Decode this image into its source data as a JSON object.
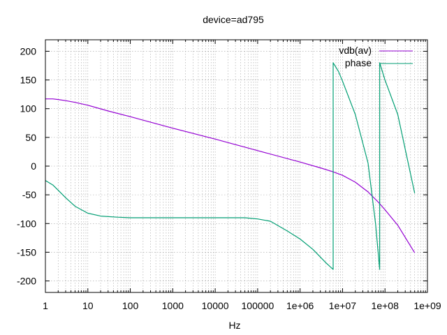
{
  "chart_data": {
    "type": "line",
    "title": "device=ad795",
    "xlabel": "Hz",
    "ylabel": "",
    "x_scale": "log",
    "xlim": [
      1,
      1000000000
    ],
    "ylim": [
      -220,
      220
    ],
    "grid": true,
    "legend_position": "top-right",
    "x_ticks": [
      {
        "value": 1,
        "label": "1"
      },
      {
        "value": 10,
        "label": "10"
      },
      {
        "value": 100,
        "label": "100"
      },
      {
        "value": 1000,
        "label": "1000"
      },
      {
        "value": 10000,
        "label": "10000"
      },
      {
        "value": 100000,
        "label": "100000"
      },
      {
        "value": 1000000,
        "label": "1e+06"
      },
      {
        "value": 10000000,
        "label": "1e+07"
      },
      {
        "value": 100000000,
        "label": "1e+08"
      },
      {
        "value": 1000000000,
        "label": "1e+09"
      }
    ],
    "y_ticks": [
      {
        "value": 200,
        "label": "200"
      },
      {
        "value": 150,
        "label": "150"
      },
      {
        "value": 100,
        "label": "100"
      },
      {
        "value": 50,
        "label": "50"
      },
      {
        "value": 0,
        "label": "0"
      },
      {
        "value": -50,
        "label": "-50"
      },
      {
        "value": -100,
        "label": "-100"
      },
      {
        "value": -150,
        "label": "-150"
      },
      {
        "value": -200,
        "label": "-200"
      }
    ],
    "series": [
      {
        "name": "vdb(av)",
        "color": "#9400d3",
        "points": [
          [
            1,
            117
          ],
          [
            1.5,
            117
          ],
          [
            2,
            116
          ],
          [
            3,
            114
          ],
          [
            5,
            111
          ],
          [
            10,
            106
          ],
          [
            30,
            96
          ],
          [
            100,
            86
          ],
          [
            1000,
            66
          ],
          [
            10000,
            47
          ],
          [
            100000,
            27
          ],
          [
            1000000,
            7
          ],
          [
            3000000,
            -3
          ],
          [
            6000000,
            -10
          ],
          [
            10000000,
            -16
          ],
          [
            20000000,
            -28
          ],
          [
            40000000,
            -45
          ],
          [
            70000000,
            -63
          ],
          [
            100000000,
            -76
          ],
          [
            200000000,
            -103
          ],
          [
            500000000,
            -151
          ]
        ]
      },
      {
        "name": "phase",
        "color": "#009e73",
        "points": [
          [
            1,
            -25
          ],
          [
            1.5,
            -33
          ],
          [
            2,
            -42
          ],
          [
            3,
            -55
          ],
          [
            5,
            -70
          ],
          [
            10,
            -82
          ],
          [
            20,
            -87
          ],
          [
            50,
            -89
          ],
          [
            100,
            -90
          ],
          [
            1000,
            -90
          ],
          [
            10000,
            -90
          ],
          [
            50000,
            -90
          ],
          [
            100000,
            -92
          ],
          [
            200000,
            -96
          ],
          [
            500000,
            -113
          ],
          [
            1000000,
            -127
          ],
          [
            2000000,
            -145
          ],
          [
            4000000,
            -168
          ],
          [
            6000000,
            -180
          ],
          [
            6000000,
            180
          ],
          [
            8000000,
            165
          ],
          [
            10000000,
            148
          ],
          [
            20000000,
            90
          ],
          [
            40000000,
            5
          ],
          [
            60000000,
            -100
          ],
          [
            75000000,
            -180
          ],
          [
            75000000,
            180
          ],
          [
            100000000,
            150
          ],
          [
            200000000,
            90
          ],
          [
            500000000,
            -47
          ]
        ]
      }
    ]
  }
}
